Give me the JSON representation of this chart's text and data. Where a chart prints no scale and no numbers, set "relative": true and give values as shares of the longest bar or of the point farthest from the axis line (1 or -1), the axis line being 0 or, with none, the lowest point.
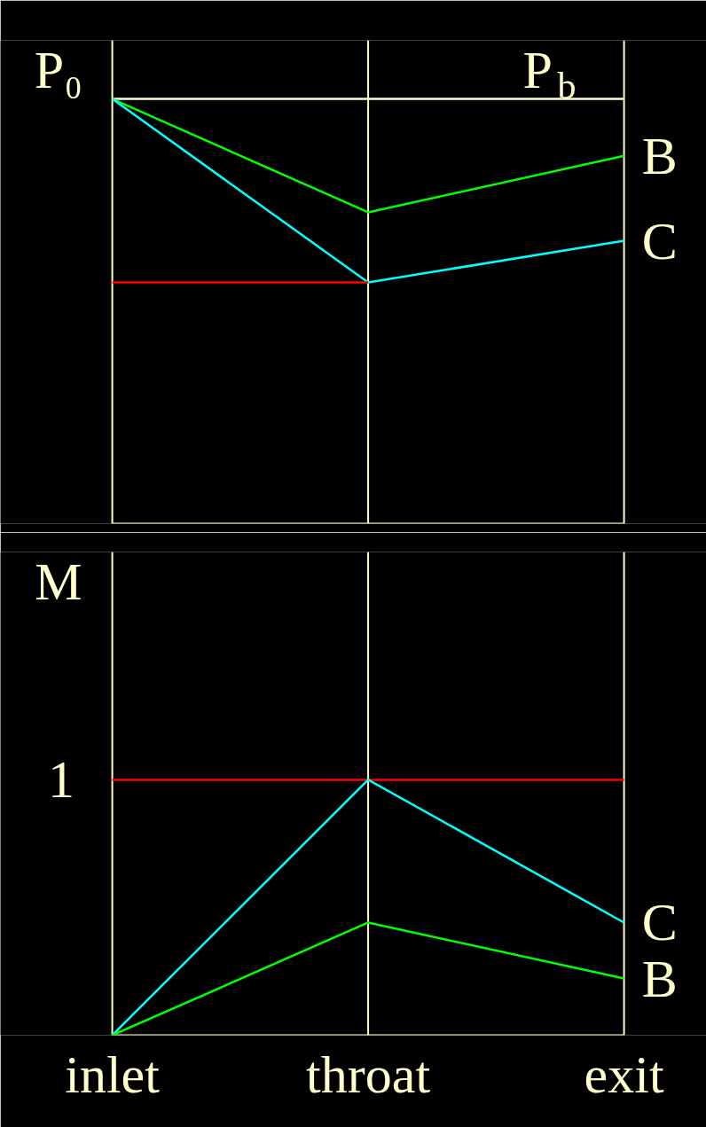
{
  "chart_data": [
    {
      "type": "line",
      "relative": true,
      "ylabel": "P₀",
      "y2label": "P$_{b}$",
      "categories": [
        "inlet",
        "throat",
        "exit"
      ],
      "tick_labels": false,
      "series": [
        {
          "name": "B",
          "color": "#00ff00",
          "values": [
            1,
            0.733,
            0.866
          ]
        },
        {
          "name": "C",
          "color": "#00ffff",
          "values": [
            1,
            0.568,
            0.666
          ]
        },
        {
          "color": "#ff0000",
          "values": [
            0.568,
            0.568,
            null
          ]
        }
      ],
      "ref_lines": [
        {
          "axis": "y",
          "value": 1,
          "color": "#ffffcc"
        },
        {
          "axis": "x",
          "value": "throat",
          "color": "#ffffcc"
        }
      ]
    },
    {
      "type": "line",
      "relative": true,
      "ylabel": "M",
      "categories": [
        "inlet",
        "throat",
        "exit"
      ],
      "tick_labels": "x",
      "series": [
        {
          "name": "C",
          "color": "#00ffff",
          "values": [
            0,
            1,
            0.441
          ]
        },
        {
          "name": "B",
          "color": "#00ff00",
          "values": [
            0,
            0.441,
            0.222
          ]
        }
      ],
      "ref_lines": [
        {
          "axis": "y",
          "value": 1,
          "label": "1",
          "color": "#ff0000"
        },
        {
          "axis": "x",
          "value": "throat",
          "color": "#ffffcc"
        }
      ]
    }
  ]
}
